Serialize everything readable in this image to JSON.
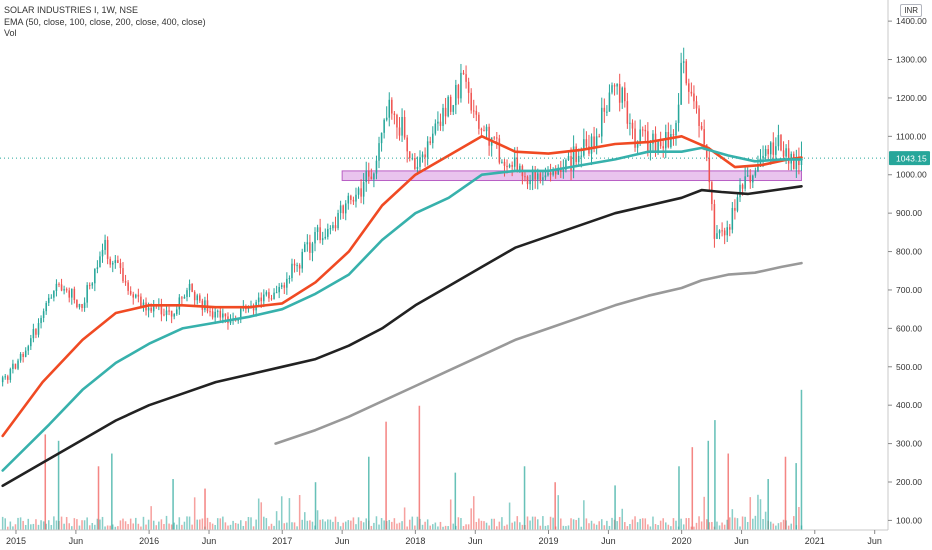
{
  "legend": {
    "symbol": "SOLAR INDUSTRIES I, 1W, NSE",
    "ema": "EMA (50, close, 100, close, 200, close, 400, close)",
    "volume": "Vol"
  },
  "currency": "INR",
  "chart_data": {
    "type": "candlestick",
    "title": "SOLAR INDUSTRIES I, 1W, NSE",
    "price_axis": {
      "ticks": [
        100,
        200,
        300,
        400,
        500,
        600,
        700,
        800,
        900,
        1000,
        1100,
        1200,
        1300,
        1400
      ],
      "tick_labels": [
        "100.00",
        "200.00",
        "300.00",
        "400.00",
        "500.00",
        "600.00",
        "700.00",
        "800.00",
        "900.00",
        "1000.00",
        "1100.00",
        "1200.00",
        "1300.00",
        "1400.00"
      ],
      "range": [
        75,
        1455
      ],
      "last_price": 1043.15,
      "last_price_label": "1043.15",
      "position": "right"
    },
    "time_axis": {
      "range": [
        2014.88,
        2021.55
      ],
      "ticks": [
        {
          "t": 2015.0,
          "label": "2015"
        },
        {
          "t": 2015.45,
          "label": "Jun"
        },
        {
          "t": 2016.0,
          "label": "2016"
        },
        {
          "t": 2016.45,
          "label": "Jun"
        },
        {
          "t": 2017.0,
          "label": "2017"
        },
        {
          "t": 2017.45,
          "label": "Jun"
        },
        {
          "t": 2018.0,
          "label": "2018"
        },
        {
          "t": 2018.45,
          "label": "Jun"
        },
        {
          "t": 2019.0,
          "label": "2019"
        },
        {
          "t": 2019.45,
          "label": "Jun"
        },
        {
          "t": 2020.0,
          "label": "2020"
        },
        {
          "t": 2020.45,
          "label": "Jun"
        },
        {
          "t": 2021.0,
          "label": "2021"
        },
        {
          "t": 2021.45,
          "label": "Jun"
        }
      ]
    },
    "candles": {
      "interval": "1W",
      "start": 2014.9,
      "end": 2020.9,
      "up_color": "#26a69a",
      "down_color": "#ef5350",
      "close_path": [
        [
          2014.9,
          460
        ],
        [
          2015.1,
          560
        ],
        [
          2015.3,
          720
        ],
        [
          2015.5,
          660
        ],
        [
          2015.65,
          820
        ],
        [
          2015.85,
          700
        ],
        [
          2016.0,
          650
        ],
        [
          2016.15,
          640
        ],
        [
          2016.3,
          700
        ],
        [
          2016.45,
          650
        ],
        [
          2016.6,
          620
        ],
        [
          2016.75,
          650
        ],
        [
          2016.9,
          680
        ],
        [
          2017.1,
          760
        ],
        [
          2017.25,
          840
        ],
        [
          2017.45,
          900
        ],
        [
          2017.55,
          950
        ],
        [
          2017.7,
          1020
        ],
        [
          2017.8,
          1180
        ],
        [
          2017.9,
          1120
        ],
        [
          2018.0,
          1010
        ],
        [
          2018.2,
          1150
        ],
        [
          2018.35,
          1240
        ],
        [
          2018.5,
          1120
        ],
        [
          2018.65,
          1050
        ],
        [
          2018.8,
          1000
        ],
        [
          2019.0,
          980
        ],
        [
          2019.2,
          1050
        ],
        [
          2019.35,
          1100
        ],
        [
          2019.5,
          1250
        ],
        [
          2019.65,
          1100
        ],
        [
          2019.8,
          1080
        ],
        [
          2019.95,
          1100
        ],
        [
          2020.0,
          1280
        ],
        [
          2020.1,
          1200
        ],
        [
          2020.2,
          1010
        ],
        [
          2020.25,
          820
        ],
        [
          2020.35,
          860
        ],
        [
          2020.45,
          960
        ],
        [
          2020.55,
          1010
        ],
        [
          2020.65,
          1060
        ],
        [
          2020.75,
          1080
        ],
        [
          2020.85,
          1010
        ],
        [
          2020.9,
          1043.15
        ]
      ]
    },
    "ema_series": [
      {
        "period": 50,
        "color": "#f04a23",
        "width": 2.6,
        "points": [
          [
            2014.9,
            320
          ],
          [
            2015.2,
            460
          ],
          [
            2015.5,
            570
          ],
          [
            2015.75,
            640
          ],
          [
            2016.0,
            660
          ],
          [
            2016.25,
            660
          ],
          [
            2016.5,
            655
          ],
          [
            2016.75,
            655
          ],
          [
            2017.0,
            665
          ],
          [
            2017.25,
            720
          ],
          [
            2017.5,
            800
          ],
          [
            2017.75,
            920
          ],
          [
            2018.0,
            1000
          ],
          [
            2018.25,
            1050
          ],
          [
            2018.5,
            1100
          ],
          [
            2018.75,
            1060
          ],
          [
            2019.0,
            1055
          ],
          [
            2019.25,
            1065
          ],
          [
            2019.5,
            1080
          ],
          [
            2019.75,
            1085
          ],
          [
            2020.0,
            1100
          ],
          [
            2020.2,
            1070
          ],
          [
            2020.4,
            1020
          ],
          [
            2020.6,
            1025
          ],
          [
            2020.8,
            1040
          ],
          [
            2020.9,
            1045
          ]
        ]
      },
      {
        "period": 100,
        "color": "#37b1ac",
        "width": 2.6,
        "points": [
          [
            2014.9,
            230
          ],
          [
            2015.25,
            350
          ],
          [
            2015.5,
            440
          ],
          [
            2015.75,
            510
          ],
          [
            2016.0,
            560
          ],
          [
            2016.25,
            600
          ],
          [
            2016.5,
            615
          ],
          [
            2016.75,
            630
          ],
          [
            2017.0,
            650
          ],
          [
            2017.25,
            690
          ],
          [
            2017.5,
            740
          ],
          [
            2017.75,
            830
          ],
          [
            2018.0,
            900
          ],
          [
            2018.25,
            940
          ],
          [
            2018.5,
            1000
          ],
          [
            2018.75,
            1010
          ],
          [
            2019.0,
            1010
          ],
          [
            2019.25,
            1025
          ],
          [
            2019.5,
            1040
          ],
          [
            2019.75,
            1060
          ],
          [
            2020.0,
            1060
          ],
          [
            2020.15,
            1070
          ],
          [
            2020.35,
            1050
          ],
          [
            2020.55,
            1035
          ],
          [
            2020.75,
            1040
          ],
          [
            2020.9,
            1040
          ]
        ]
      },
      {
        "period": 200,
        "color": "#222222",
        "width": 2.6,
        "points": [
          [
            2014.9,
            190
          ],
          [
            2015.25,
            260
          ],
          [
            2015.5,
            310
          ],
          [
            2015.75,
            360
          ],
          [
            2016.0,
            400
          ],
          [
            2016.25,
            430
          ],
          [
            2016.5,
            460
          ],
          [
            2016.75,
            480
          ],
          [
            2017.0,
            500
          ],
          [
            2017.25,
            520
          ],
          [
            2017.5,
            555
          ],
          [
            2017.75,
            600
          ],
          [
            2018.0,
            660
          ],
          [
            2018.25,
            710
          ],
          [
            2018.5,
            760
          ],
          [
            2018.75,
            810
          ],
          [
            2019.0,
            840
          ],
          [
            2019.25,
            870
          ],
          [
            2019.5,
            900
          ],
          [
            2019.75,
            920
          ],
          [
            2020.0,
            940
          ],
          [
            2020.15,
            960
          ],
          [
            2020.3,
            955
          ],
          [
            2020.5,
            950
          ],
          [
            2020.7,
            960
          ],
          [
            2020.9,
            970
          ]
        ]
      },
      {
        "period": 400,
        "color": "#999999",
        "width": 2.6,
        "points": [
          [
            2016.95,
            300
          ],
          [
            2017.25,
            335
          ],
          [
            2017.5,
            370
          ],
          [
            2017.75,
            410
          ],
          [
            2018.0,
            450
          ],
          [
            2018.25,
            490
          ],
          [
            2018.5,
            530
          ],
          [
            2018.75,
            570
          ],
          [
            2019.0,
            600
          ],
          [
            2019.25,
            630
          ],
          [
            2019.5,
            660
          ],
          [
            2019.75,
            685
          ],
          [
            2020.0,
            705
          ],
          [
            2020.15,
            725
          ],
          [
            2020.35,
            740
          ],
          [
            2020.55,
            745
          ],
          [
            2020.75,
            760
          ],
          [
            2020.9,
            770
          ]
        ]
      }
    ],
    "support_zone": {
      "t_start": 2017.45,
      "t_end": 2020.9,
      "price_low": 985,
      "price_high": 1010,
      "fill": "#e3b5ea",
      "stroke": "#b95fc5"
    },
    "volume": {
      "scale_max": 440,
      "typical_level": 25,
      "spikes": [
        {
          "t": 2015.22,
          "v": 300,
          "up": false
        },
        {
          "t": 2015.32,
          "v": 280,
          "up": true
        },
        {
          "t": 2015.62,
          "v": 200,
          "up": false
        },
        {
          "t": 2015.72,
          "v": 240,
          "up": true
        },
        {
          "t": 2016.18,
          "v": 160,
          "up": true
        },
        {
          "t": 2016.42,
          "v": 130,
          "up": false
        },
        {
          "t": 2017.25,
          "v": 150,
          "up": true
        },
        {
          "t": 2017.65,
          "v": 230,
          "up": true
        },
        {
          "t": 2017.78,
          "v": 340,
          "up": false
        },
        {
          "t": 2018.03,
          "v": 390,
          "up": false
        },
        {
          "t": 2018.3,
          "v": 180,
          "up": true
        },
        {
          "t": 2018.82,
          "v": 200,
          "up": true
        },
        {
          "t": 2019.05,
          "v": 150,
          "up": false
        },
        {
          "t": 2019.5,
          "v": 140,
          "up": true
        },
        {
          "t": 2019.98,
          "v": 200,
          "up": true
        },
        {
          "t": 2020.08,
          "v": 260,
          "up": false
        },
        {
          "t": 2020.2,
          "v": 280,
          "up": true
        },
        {
          "t": 2020.25,
          "v": 345,
          "up": true
        },
        {
          "t": 2020.35,
          "v": 240,
          "up": false
        },
        {
          "t": 2020.65,
          "v": 160,
          "up": true
        },
        {
          "t": 2020.78,
          "v": 230,
          "up": false
        },
        {
          "t": 2020.86,
          "v": 210,
          "up": true
        },
        {
          "t": 2020.9,
          "v": 440,
          "up": true
        }
      ]
    },
    "grid": false,
    "legend": "top-left"
  }
}
